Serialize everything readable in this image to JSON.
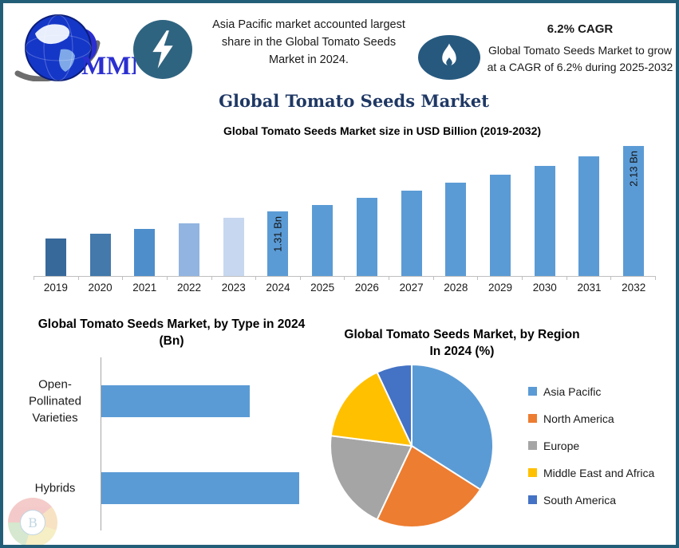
{
  "palette": {
    "frame_border": "#235e78",
    "title_navy": "#1f3864",
    "icon_circle": "#2f6480",
    "flame_ellipse": "#27597f",
    "primary_bar_blue": "#5b9bd5",
    "axis_gray": "#bfbfbf",
    "logo_blue": "#2b2fd0"
  },
  "header": {
    "logo_text": "MMR",
    "insight_left": {
      "text": "Asia Pacific market accounted largest share in the Global Tomato Seeds Market in 2024."
    },
    "insight_right": {
      "headline": "6.2% CAGR",
      "body": "Global Tomato Seeds Market to grow at a CAGR of 6.2% during 2025-2032"
    }
  },
  "main_title": "Global Tomato Seeds Market",
  "watermark_letter": "B",
  "chart_data": [
    {
      "id": "size_trend",
      "type": "bar",
      "title": "Global Tomato Seeds Market size in USD Billion (2019-2032)",
      "unit": "USD Billion",
      "categories": [
        "2019",
        "2020",
        "2021",
        "2022",
        "2023",
        "2024",
        "2025",
        "2026",
        "2027",
        "2028",
        "2029",
        "2030",
        "2031",
        "2032"
      ],
      "values": [
        0.97,
        1.03,
        1.09,
        1.16,
        1.23,
        1.31,
        1.39,
        1.48,
        1.57,
        1.67,
        1.77,
        1.88,
        2.0,
        2.13
      ],
      "bar_labels": [
        "",
        "",
        "",
        "",
        "",
        "1.31 Bn",
        "",
        "",
        "",
        "",
        "",
        "",
        "",
        "2.13 Bn"
      ],
      "bar_colors": [
        "#38699b",
        "#4379ab",
        "#4e8ecb",
        "#92b4e0",
        "#c7d7ef",
        "#5b9bd5",
        "#5b9bd5",
        "#5b9bd5",
        "#5b9bd5",
        "#5b9bd5",
        "#5b9bd5",
        "#5b9bd5",
        "#5b9bd5",
        "#5b9bd5"
      ],
      "ylim": [
        0.5,
        2.2
      ],
      "grid": false,
      "legend": "none"
    },
    {
      "id": "by_type",
      "type": "bar",
      "orientation": "horizontal",
      "title": "Global Tomato Seeds Market, by Type in 2024 (Bn)",
      "categories": [
        "Open-Pollinated Varieties",
        "Hybrids"
      ],
      "values": [
        0.56,
        0.75
      ],
      "xlim": [
        0,
        0.8
      ],
      "bar_color": "#5b9bd5",
      "grid": false,
      "legend": "none"
    },
    {
      "id": "by_region",
      "type": "pie",
      "title": "Global Tomato Seeds Market, by Region In 2024 (%)",
      "labels": [
        "Asia Pacific",
        "North America",
        "Europe",
        "Middle East and Africa",
        "South America"
      ],
      "values": [
        34,
        23,
        20,
        16,
        7
      ],
      "colors": [
        "#5b9bd5",
        "#ed7d31",
        "#a5a5a5",
        "#ffc000",
        "#4472c4"
      ],
      "legend_position": "right",
      "start_angle_deg": 0,
      "direction": "clockwise"
    }
  ]
}
